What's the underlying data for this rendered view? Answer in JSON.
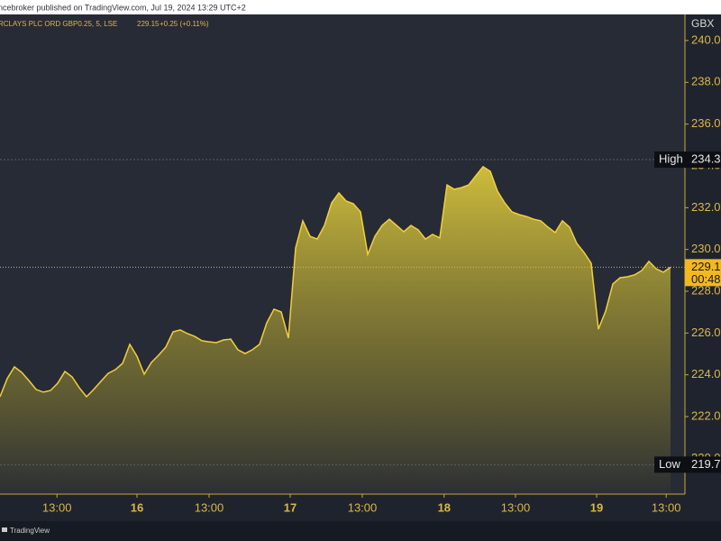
{
  "chart_data": {
    "type": "area",
    "header": "ncebroker published on TradingView.com, Jul 19, 2024 13:29 UTC+2",
    "title": "RCLAYS PLC ORD GBP0.25, 5, LSE",
    "last_price": "229.15",
    "change": "+0.25 (+0.11%)",
    "currency": "GBX",
    "brand": "TradingView",
    "color": "#f2cf3c",
    "values": [
      222.95,
      223.82,
      224.38,
      224.12,
      223.73,
      223.3,
      223.17,
      223.25,
      223.6,
      224.16,
      223.9,
      223.38,
      222.95,
      223.3,
      223.69,
      224.07,
      224.25,
      224.55,
      225.46,
      224.89,
      224.03,
      224.59,
      224.94,
      225.33,
      226.06,
      226.15,
      225.97,
      225.84,
      225.63,
      225.58,
      225.54,
      225.67,
      225.71,
      225.2,
      225.02,
      225.2,
      225.46,
      226.49,
      227.14,
      227.01,
      225.76,
      230.07,
      231.37,
      230.63,
      230.5,
      231.15,
      232.23,
      232.71,
      232.32,
      232.19,
      231.8,
      229.77,
      230.63,
      231.15,
      231.45,
      231.15,
      230.85,
      231.15,
      230.94,
      230.5,
      230.72,
      230.55,
      233.09,
      232.88,
      232.96,
      233.09,
      233.53,
      233.96,
      233.74,
      232.79,
      232.23,
      231.8,
      231.67,
      231.58,
      231.45,
      231.37,
      231.07,
      230.81,
      231.37,
      231.07,
      230.29,
      229.86,
      229.34,
      226.19,
      227.05,
      228.35,
      228.65,
      228.69,
      228.78,
      228.99,
      229.43,
      229.08,
      228.91,
      229.15
    ],
    "xlim": [
      0,
      95
    ],
    "xticks": [
      {
        "value": 7.9,
        "label": "13:00"
      },
      {
        "value": 19,
        "label": "16"
      },
      {
        "value": 29,
        "label": "13:00"
      },
      {
        "value": 40.25,
        "label": "17"
      },
      {
        "value": 50.25,
        "label": "13:00"
      },
      {
        "value": 61.6,
        "label": "18"
      },
      {
        "value": 71.5,
        "label": "13:00"
      },
      {
        "value": 82.75,
        "label": "19"
      },
      {
        "value": 92.4,
        "label": "13:00"
      }
    ],
    "ylim": [
      218.29,
      241.25
    ],
    "yticks": [
      {
        "value": 220,
        "label": "220.00"
      },
      {
        "value": 222,
        "label": "222.00"
      },
      {
        "value": 224,
        "label": "224.00"
      },
      {
        "value": 226,
        "label": "226.00"
      },
      {
        "value": 228,
        "label": "228.00"
      },
      {
        "value": 230,
        "label": "230.00"
      },
      {
        "value": 232,
        "label": "232.00"
      },
      {
        "value": 234,
        "label": "234.00"
      },
      {
        "value": 236,
        "label": "236.00"
      },
      {
        "value": 238,
        "label": "238.00"
      },
      {
        "value": 240,
        "label": "240.00"
      }
    ],
    "markers": [
      {
        "name": "High",
        "value": 234.3,
        "value_label": "234.30"
      },
      {
        "name": "Low",
        "value": 219.7,
        "value_label": "219.70"
      },
      {
        "value": 229.15,
        "value_label": "229.15",
        "countdown": "00:48"
      }
    ]
  }
}
